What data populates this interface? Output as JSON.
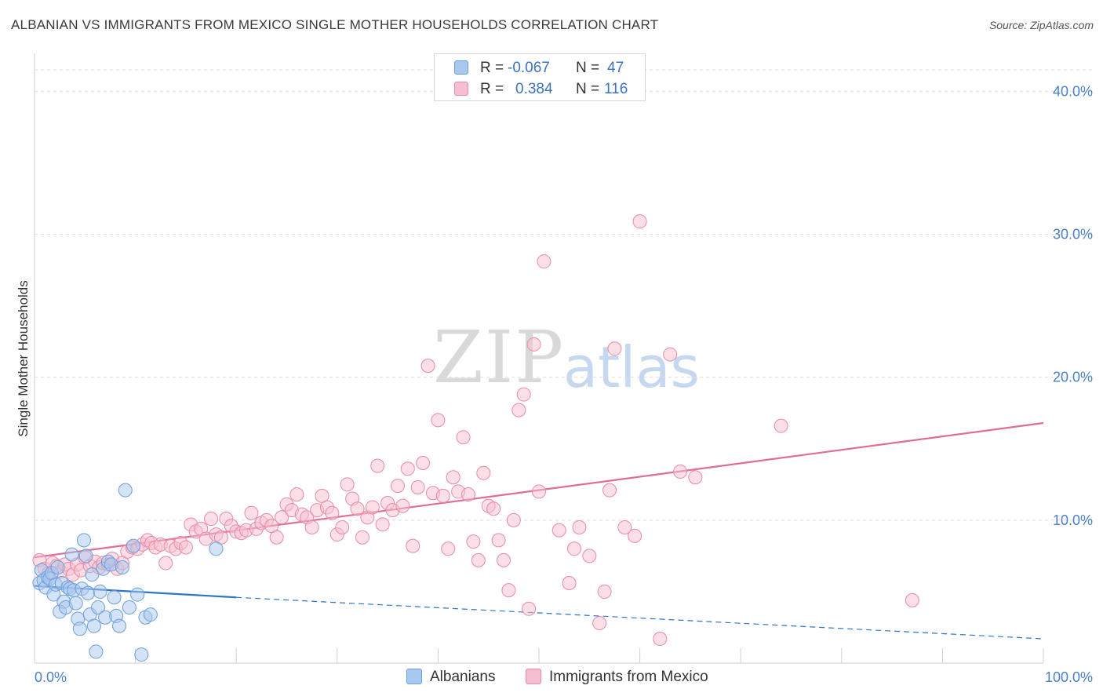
{
  "header": {
    "title": "ALBANIAN VS IMMIGRANTS FROM MEXICO SINGLE MOTHER HOUSEHOLDS CORRELATION CHART",
    "source": "Source: ZipAtlas.com"
  },
  "watermark": {
    "zip": "ZIP",
    "atlas": "atlas"
  },
  "legend": {
    "rows": [
      {
        "r_label": "R =",
        "r_value": "-0.067",
        "n_label": "N =",
        "n_value": "47"
      },
      {
        "r_label": "R =",
        "r_value": "0.384",
        "n_label": "N =",
        "n_value": "116"
      }
    ]
  },
  "bottom_legend": {
    "albanians": "Albanians",
    "mexico": "Immigrants from Mexico"
  },
  "colors": {
    "albanians_fill": "#a9c8ee",
    "albanians_stroke": "#6d9fdc",
    "albanians_line": "#2e74c9",
    "mexico_fill": "#f6bfd0",
    "mexico_stroke": "#e98aa8",
    "mexico_line": "#e06d97",
    "tick_text": "#4a80c8",
    "grid": "#dedede"
  },
  "chart_data": {
    "type": "scatter",
    "title": "ALBANIAN VS IMMIGRANTS FROM MEXICO SINGLE MOTHER HOUSEHOLDS CORRELATION CHART",
    "xlabel": "",
    "ylabel": "Single Mother Households",
    "xlim": [
      0,
      100
    ],
    "ylim": [
      0,
      42
    ],
    "x_tick_labels": [
      "0.0%",
      "100.0%"
    ],
    "y_ticks": [
      10,
      20,
      30,
      40
    ],
    "y_tick_labels": [
      "10.0%",
      "20.0%",
      "30.0%",
      "40.0%"
    ],
    "grid": true,
    "legend_position": "top-center",
    "series": [
      {
        "name": "Albanians",
        "r": -0.067,
        "n": 47,
        "trend": {
          "x0": 0,
          "y0": 5.4,
          "x1": 20,
          "y1": 4.6,
          "dashed_to_x": 100,
          "dashed_to_y": 1.7
        },
        "points": [
          [
            0.5,
            5.6
          ],
          [
            0.7,
            6.5
          ],
          [
            0.9,
            5.8
          ],
          [
            1.1,
            5.3
          ],
          [
            1.3,
            6.0
          ],
          [
            1.5,
            5.9
          ],
          [
            1.7,
            6.3
          ],
          [
            1.9,
            4.8
          ],
          [
            2.1,
            5.5
          ],
          [
            2.3,
            6.7
          ],
          [
            2.5,
            3.6
          ],
          [
            2.7,
            5.6
          ],
          [
            2.9,
            4.3
          ],
          [
            3.1,
            3.9
          ],
          [
            3.3,
            5.3
          ],
          [
            3.5,
            5.2
          ],
          [
            3.7,
            7.6
          ],
          [
            3.9,
            5.1
          ],
          [
            4.1,
            4.2
          ],
          [
            4.3,
            3.1
          ],
          [
            4.5,
            2.4
          ],
          [
            4.7,
            5.2
          ],
          [
            4.9,
            8.6
          ],
          [
            5.1,
            7.5
          ],
          [
            5.3,
            4.9
          ],
          [
            5.5,
            3.4
          ],
          [
            5.7,
            6.2
          ],
          [
            5.9,
            2.6
          ],
          [
            6.1,
            0.8
          ],
          [
            6.3,
            3.9
          ],
          [
            6.5,
            5.0
          ],
          [
            6.8,
            6.6
          ],
          [
            7.0,
            3.2
          ],
          [
            7.3,
            7.1
          ],
          [
            7.6,
            6.9
          ],
          [
            7.9,
            4.6
          ],
          [
            8.1,
            3.3
          ],
          [
            8.4,
            2.6
          ],
          [
            8.7,
            6.7
          ],
          [
            9.0,
            12.1
          ],
          [
            9.4,
            3.9
          ],
          [
            9.8,
            8.2
          ],
          [
            10.2,
            4.8
          ],
          [
            10.6,
            0.6
          ],
          [
            11.0,
            3.2
          ],
          [
            11.5,
            3.4
          ],
          [
            18.0,
            8.0
          ]
        ]
      },
      {
        "name": "Immigrants from Mexico",
        "r": 0.384,
        "n": 116,
        "trend": {
          "x0": 0,
          "y0": 7.4,
          "x1": 100,
          "y1": 16.8
        },
        "points": [
          [
            0.5,
            7.2
          ],
          [
            1.0,
            6.6
          ],
          [
            1.4,
            6.3
          ],
          [
            1.8,
            7.0
          ],
          [
            2.2,
            6.8
          ],
          [
            2.6,
            6.4
          ],
          [
            3.0,
            6.9
          ],
          [
            3.4,
            6.6
          ],
          [
            3.8,
            6.2
          ],
          [
            4.2,
            6.9
          ],
          [
            4.6,
            6.5
          ],
          [
            5.0,
            7.4
          ],
          [
            5.5,
            6.8
          ],
          [
            6.0,
            7.1
          ],
          [
            6.4,
            6.7
          ],
          [
            6.8,
            7.0
          ],
          [
            7.3,
            6.9
          ],
          [
            7.7,
            7.3
          ],
          [
            8.2,
            6.6
          ],
          [
            8.7,
            7.0
          ],
          [
            9.2,
            7.8
          ],
          [
            9.7,
            8.1
          ],
          [
            10.2,
            8.0
          ],
          [
            10.7,
            8.3
          ],
          [
            11.2,
            8.6
          ],
          [
            11.6,
            8.4
          ],
          [
            12.0,
            8.1
          ],
          [
            12.5,
            8.3
          ],
          [
            13.0,
            7.0
          ],
          [
            13.5,
            8.2
          ],
          [
            14.0,
            8.0
          ],
          [
            14.5,
            8.4
          ],
          [
            15.0,
            8.1
          ],
          [
            15.5,
            9.7
          ],
          [
            16.0,
            9.2
          ],
          [
            16.5,
            9.4
          ],
          [
            17.0,
            8.7
          ],
          [
            17.5,
            10.1
          ],
          [
            18.0,
            9.0
          ],
          [
            18.5,
            8.8
          ],
          [
            19.0,
            10.1
          ],
          [
            19.5,
            9.6
          ],
          [
            20.0,
            9.2
          ],
          [
            20.5,
            9.1
          ],
          [
            21.0,
            9.3
          ],
          [
            21.5,
            10.5
          ],
          [
            22.0,
            9.4
          ],
          [
            22.5,
            9.8
          ],
          [
            23.0,
            10.0
          ],
          [
            23.5,
            9.6
          ],
          [
            24.0,
            8.8
          ],
          [
            24.5,
            10.2
          ],
          [
            25.0,
            11.1
          ],
          [
            25.5,
            10.7
          ],
          [
            26.0,
            11.8
          ],
          [
            26.5,
            10.4
          ],
          [
            27.0,
            10.2
          ],
          [
            27.5,
            9.5
          ],
          [
            28.0,
            10.7
          ],
          [
            28.5,
            11.7
          ],
          [
            29.0,
            10.9
          ],
          [
            29.5,
            10.5
          ],
          [
            30.0,
            9.0
          ],
          [
            30.5,
            9.5
          ],
          [
            31.0,
            12.5
          ],
          [
            31.5,
            11.5
          ],
          [
            32.0,
            10.8
          ],
          [
            32.5,
            8.8
          ],
          [
            33.0,
            10.2
          ],
          [
            33.5,
            10.9
          ],
          [
            34.0,
            13.8
          ],
          [
            34.5,
            9.7
          ],
          [
            35.0,
            11.2
          ],
          [
            35.5,
            10.7
          ],
          [
            36.0,
            12.4
          ],
          [
            36.5,
            11.0
          ],
          [
            37.0,
            13.6
          ],
          [
            37.5,
            8.2
          ],
          [
            38.0,
            12.3
          ],
          [
            38.5,
            14.0
          ],
          [
            39.0,
            20.8
          ],
          [
            39.5,
            11.9
          ],
          [
            40.0,
            17.0
          ],
          [
            40.5,
            11.7
          ],
          [
            41.0,
            8.0
          ],
          [
            41.5,
            13.0
          ],
          [
            42.0,
            12.0
          ],
          [
            42.5,
            15.8
          ],
          [
            43.0,
            11.8
          ],
          [
            43.5,
            8.5
          ],
          [
            44.0,
            7.2
          ],
          [
            44.5,
            13.3
          ],
          [
            45.0,
            11.0
          ],
          [
            45.5,
            10.8
          ],
          [
            46.0,
            8.6
          ],
          [
            46.5,
            7.2
          ],
          [
            47.0,
            5.1
          ],
          [
            47.5,
            10.0
          ],
          [
            48.0,
            17.7
          ],
          [
            48.5,
            18.8
          ],
          [
            49.0,
            3.8
          ],
          [
            49.5,
            22.3
          ],
          [
            50.0,
            12.0
          ],
          [
            50.5,
            28.1
          ],
          [
            52.0,
            9.3
          ],
          [
            53.0,
            5.6
          ],
          [
            53.5,
            8.0
          ],
          [
            54.0,
            9.5
          ],
          [
            55.0,
            7.5
          ],
          [
            56.0,
            2.8
          ],
          [
            56.5,
            5.0
          ],
          [
            57.0,
            12.1
          ],
          [
            57.5,
            22.0
          ],
          [
            58.5,
            9.5
          ],
          [
            59.5,
            8.9
          ],
          [
            60.0,
            30.9
          ],
          [
            62.0,
            1.7
          ],
          [
            63.0,
            21.6
          ],
          [
            64.0,
            13.4
          ],
          [
            65.5,
            13.0
          ],
          [
            74.0,
            16.6
          ],
          [
            87.0,
            4.4
          ]
        ]
      }
    ]
  }
}
